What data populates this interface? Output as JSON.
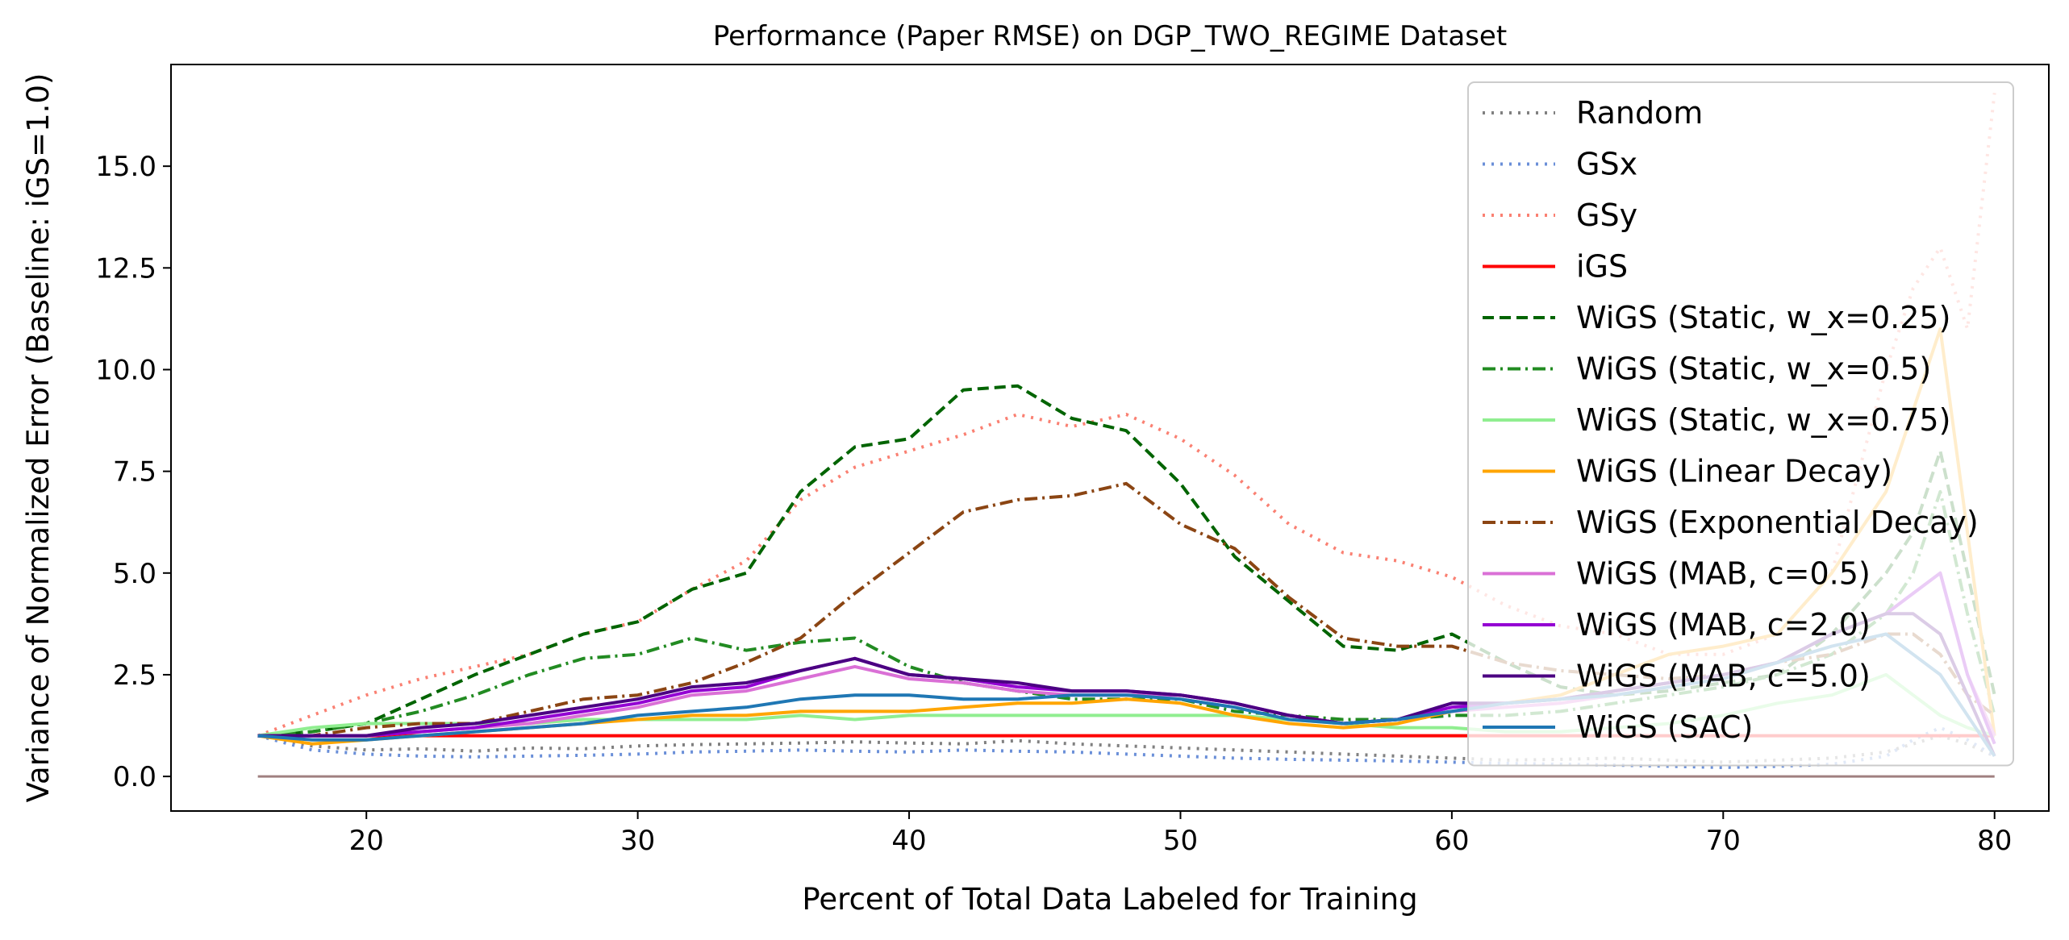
{
  "chart_data": {
    "type": "line",
    "title": "Performance (Paper RMSE) on DGP_TWO_REGIME Dataset",
    "xlabel": "Percent of Total Data Labeled for Training",
    "ylabel": "Variance of Normalized Error (Baseline: iGS=1.0)",
    "xlim": [
      12.8,
      82.0
    ],
    "ylim": [
      -0.85,
      17.5
    ],
    "xticks": [
      20,
      30,
      40,
      50,
      60,
      70,
      80
    ],
    "xtick_labels": [
      "20",
      "30",
      "40",
      "50",
      "60",
      "70",
      "80"
    ],
    "yticks": [
      0.0,
      2.5,
      5.0,
      7.5,
      10.0,
      12.5,
      15.0
    ],
    "ytick_labels": [
      "0.0",
      "2.5",
      "5.0",
      "7.5",
      "10.0",
      "12.5",
      "15.0"
    ],
    "grid": false,
    "legend_position": "top-right",
    "x": [
      16,
      18,
      20,
      22,
      24,
      26,
      28,
      30,
      32,
      34,
      36,
      38,
      40,
      42,
      44,
      46,
      48,
      50,
      52,
      54,
      56,
      58,
      60,
      62,
      64,
      66,
      68,
      70,
      72,
      74,
      76,
      77,
      78,
      79,
      80
    ],
    "series": [
      {
        "name": "Random",
        "color": "#808080",
        "dash": "dotted",
        "values": [
          1.0,
          0.75,
          0.65,
          0.68,
          0.62,
          0.7,
          0.68,
          0.75,
          0.78,
          0.8,
          0.82,
          0.85,
          0.82,
          0.8,
          0.88,
          0.8,
          0.75,
          0.7,
          0.65,
          0.6,
          0.55,
          0.5,
          0.45,
          0.4,
          0.42,
          0.45,
          0.4,
          0.35,
          0.4,
          0.45,
          0.6,
          0.8,
          1.0,
          0.8,
          0.5
        ]
      },
      {
        "name": "GSx",
        "color": "#6a8fd8",
        "dash": "dotted",
        "values": [
          1.0,
          0.65,
          0.55,
          0.5,
          0.48,
          0.5,
          0.52,
          0.55,
          0.6,
          0.62,
          0.65,
          0.62,
          0.6,
          0.65,
          0.62,
          0.6,
          0.55,
          0.5,
          0.45,
          0.42,
          0.4,
          0.38,
          0.35,
          0.32,
          0.3,
          0.28,
          0.25,
          0.22,
          0.25,
          0.3,
          0.5,
          0.9,
          1.2,
          0.9,
          0.5
        ]
      },
      {
        "name": "GSy",
        "color": "#fa8072",
        "dash": "dotted",
        "values": [
          1.0,
          1.5,
          2.0,
          2.4,
          2.7,
          3.0,
          3.5,
          3.8,
          4.6,
          5.3,
          6.8,
          7.6,
          8.0,
          8.4,
          8.9,
          8.6,
          8.9,
          8.3,
          7.4,
          6.2,
          5.5,
          5.3,
          4.9,
          4.2,
          3.7,
          3.5,
          3.0,
          3.0,
          3.5,
          5.0,
          10.0,
          12.0,
          13.0,
          11.0,
          16.8
        ]
      },
      {
        "name": "iGS",
        "color": "#ff0000",
        "dash": "solid",
        "values": [
          1.0,
          1.0,
          1.0,
          1.0,
          1.0,
          1.0,
          1.0,
          1.0,
          1.0,
          1.0,
          1.0,
          1.0,
          1.0,
          1.0,
          1.0,
          1.0,
          1.0,
          1.0,
          1.0,
          1.0,
          1.0,
          1.0,
          1.0,
          1.0,
          1.0,
          1.0,
          1.0,
          1.0,
          1.0,
          1.0,
          1.0,
          1.0,
          1.0,
          1.0,
          1.0
        ]
      },
      {
        "name": "WiGS (Static, w_x=0.25)",
        "color": "#006400",
        "dash": "dashed",
        "values": [
          1.0,
          1.1,
          1.3,
          1.9,
          2.5,
          3.0,
          3.5,
          3.8,
          4.6,
          5.0,
          7.0,
          8.1,
          8.3,
          9.5,
          9.6,
          8.8,
          8.5,
          7.2,
          5.4,
          4.3,
          3.2,
          3.1,
          3.5,
          2.8,
          2.2,
          2.0,
          2.1,
          2.3,
          2.5,
          3.5,
          5.0,
          6.0,
          8.0,
          5.0,
          2.0
        ]
      },
      {
        "name": "WiGS (Static, w_x=0.5)",
        "color": "#228b22",
        "dash": "dashdot",
        "values": [
          1.0,
          1.1,
          1.3,
          1.6,
          2.0,
          2.5,
          2.9,
          3.0,
          3.4,
          3.1,
          3.3,
          3.4,
          2.7,
          2.3,
          2.1,
          1.9,
          1.9,
          1.9,
          1.6,
          1.5,
          1.4,
          1.4,
          1.5,
          1.5,
          1.6,
          1.8,
          2.0,
          2.2,
          2.5,
          3.0,
          4.0,
          5.0,
          7.0,
          4.0,
          1.5
        ]
      },
      {
        "name": "WiGS (Static, w_x=0.75)",
        "color": "#90ee90",
        "dash": "solid",
        "values": [
          1.0,
          1.2,
          1.3,
          1.3,
          1.3,
          1.3,
          1.4,
          1.4,
          1.4,
          1.4,
          1.5,
          1.4,
          1.5,
          1.5,
          1.5,
          1.5,
          1.5,
          1.5,
          1.5,
          1.4,
          1.3,
          1.2,
          1.2,
          1.1,
          1.1,
          1.2,
          1.3,
          1.5,
          1.8,
          2.0,
          2.5,
          2.0,
          1.5,
          1.2,
          1.0
        ]
      },
      {
        "name": "WiGS (Linear Decay)",
        "color": "#ffa500",
        "dash": "solid",
        "values": [
          1.0,
          0.8,
          0.9,
          1.0,
          1.1,
          1.2,
          1.3,
          1.4,
          1.5,
          1.5,
          1.6,
          1.6,
          1.6,
          1.7,
          1.8,
          1.8,
          1.9,
          1.8,
          1.5,
          1.3,
          1.2,
          1.3,
          1.6,
          1.8,
          2.0,
          2.5,
          3.0,
          3.2,
          3.5,
          5.0,
          7.0,
          9.0,
          11.0,
          6.0,
          1.0
        ]
      },
      {
        "name": "WiGS (Exponential Decay)",
        "color": "#8b4513",
        "dash": "dashdot",
        "values": [
          1.0,
          1.0,
          1.2,
          1.3,
          1.3,
          1.6,
          1.9,
          2.0,
          2.3,
          2.8,
          3.4,
          4.5,
          5.5,
          6.5,
          6.8,
          6.9,
          7.2,
          6.2,
          5.6,
          4.4,
          3.4,
          3.2,
          3.2,
          2.8,
          2.6,
          2.5,
          2.4,
          2.5,
          2.8,
          3.0,
          3.5,
          3.5,
          3.0,
          2.0,
          1.5
        ]
      },
      {
        "name": "WiGS (MAB, c=0.5)",
        "color": "#da70d6",
        "dash": "solid",
        "values": [
          1.0,
          1.0,
          1.0,
          1.1,
          1.2,
          1.3,
          1.5,
          1.7,
          2.0,
          2.1,
          2.4,
          2.7,
          2.4,
          2.3,
          2.1,
          2.0,
          2.0,
          2.0,
          1.8,
          1.5,
          1.3,
          1.4,
          1.6,
          1.7,
          1.8,
          2.0,
          2.2,
          2.4,
          2.8,
          3.5,
          4.0,
          4.5,
          5.0,
          2.5,
          1.0
        ]
      },
      {
        "name": "WiGS (MAB, c=2.0)",
        "color": "#9400d3",
        "dash": "solid",
        "values": [
          1.0,
          1.0,
          1.0,
          1.1,
          1.2,
          1.4,
          1.6,
          1.8,
          2.1,
          2.2,
          2.6,
          2.9,
          2.5,
          2.4,
          2.2,
          2.1,
          2.1,
          2.0,
          1.8,
          1.5,
          1.3,
          1.4,
          1.7,
          1.8,
          1.9,
          2.1,
          2.3,
          2.5,
          2.8,
          3.5,
          4.0,
          4.5,
          5.0,
          2.5,
          0.8
        ]
      },
      {
        "name": "WiGS (MAB, c=5.0)",
        "color": "#4b0082",
        "dash": "solid",
        "values": [
          1.0,
          1.0,
          1.0,
          1.2,
          1.3,
          1.5,
          1.7,
          1.9,
          2.2,
          2.3,
          2.6,
          2.9,
          2.5,
          2.4,
          2.3,
          2.1,
          2.1,
          2.0,
          1.8,
          1.5,
          1.3,
          1.4,
          1.8,
          1.8,
          1.9,
          2.1,
          2.3,
          2.5,
          2.8,
          3.5,
          4.0,
          4.0,
          3.5,
          2.0,
          0.5
        ]
      },
      {
        "name": "WiGS (SAC)",
        "color": "#1f77b4",
        "dash": "solid",
        "values": [
          1.0,
          0.9,
          0.9,
          1.0,
          1.1,
          1.2,
          1.3,
          1.5,
          1.6,
          1.7,
          1.9,
          2.0,
          2.0,
          1.9,
          1.9,
          2.0,
          2.0,
          1.9,
          1.7,
          1.4,
          1.3,
          1.4,
          1.6,
          1.8,
          1.9,
          2.0,
          2.2,
          2.4,
          2.8,
          3.2,
          3.5,
          3.0,
          2.5,
          1.5,
          0.5
        ]
      }
    ],
    "baseline_zero": {
      "color": "#a08080",
      "value": 0.0
    }
  }
}
